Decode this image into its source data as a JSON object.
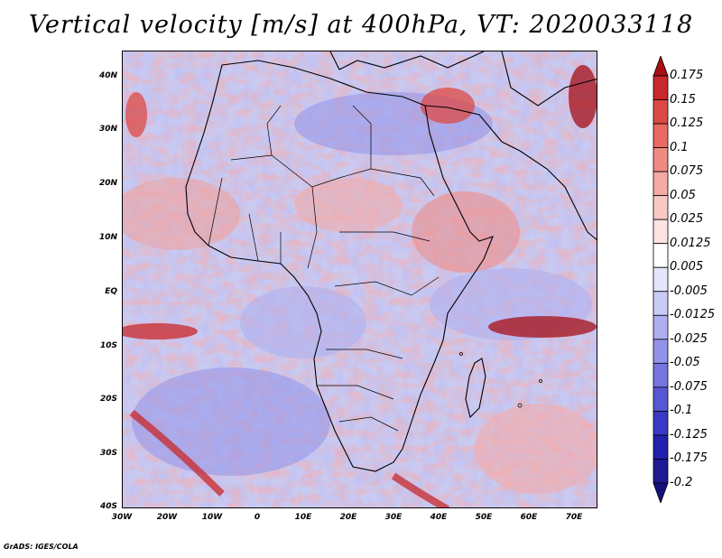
{
  "title": "Vertical velocity [m/s] at 400hPa, VT: 2020033118",
  "credit": "GrADS: IGES/COLA",
  "map": {
    "lat_labels": [
      "40N",
      "30N",
      "20N",
      "10N",
      "EQ",
      "10S",
      "20S",
      "30S",
      "40S"
    ],
    "lon_labels": [
      "30W",
      "20W",
      "10W",
      "0",
      "10E",
      "20E",
      "30E",
      "40E",
      "50E",
      "60E",
      "70E"
    ],
    "lat_range": [
      -40,
      45
    ],
    "lon_range": [
      -30,
      75
    ]
  },
  "colorbar": {
    "levels": [
      "0.175",
      "0.15",
      "0.125",
      "0.1",
      "0.075",
      "0.05",
      "0.025",
      "0.0125",
      "0.005",
      "-0.005",
      "-0.0125",
      "-0.025",
      "-0.05",
      "-0.075",
      "-0.1",
      "-0.125",
      "-0.175",
      "-0.2"
    ],
    "colors": [
      "#a50f15",
      "#c8282b",
      "#dc4a45",
      "#e96a63",
      "#f08b84",
      "#f5aaa5",
      "#f9c9c6",
      "#fce4e2",
      "#ffffff",
      "#e4e6fb",
      "#c9cbf6",
      "#aeaff0",
      "#9293ea",
      "#7576e0",
      "#5757d3",
      "#3a39c3",
      "#2220ad",
      "#1d1a94",
      "#14117a"
    ]
  }
}
